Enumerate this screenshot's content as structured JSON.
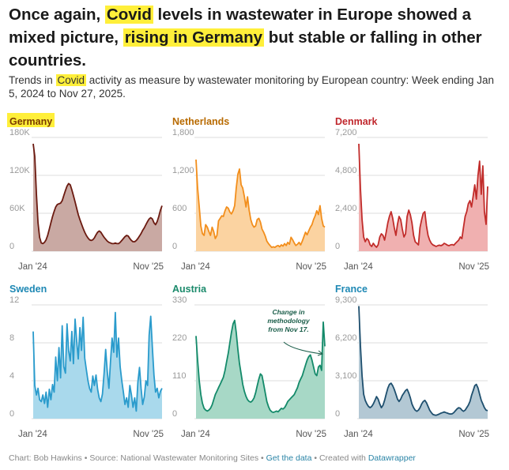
{
  "title": {
    "pre": "Once again, ",
    "hl1": "Covid",
    "mid": " levels in wastewater in Europe showed a mixed picture, ",
    "hl2": "rising in Germany",
    "post": " but stable or falling in other countries."
  },
  "subtitle": {
    "pre": "Trends in ",
    "hl": "Covid",
    "post": " activity as measure by wastewater monitoring by European country: Week ending Jan 5, 2024 to Nov 27, 2025."
  },
  "footer": {
    "chart_by": "Chart: Bob Hawkins",
    "source": "Source: National Wastewater Monitoring Sites",
    "get_data": "Get the data",
    "created": "Created with",
    "tool": "Datawrapper",
    "sep": " • "
  },
  "chart_data": [
    {
      "type": "area",
      "title": "Germany",
      "title_color": "#7a3b00",
      "highlight": true,
      "line_color": "#6b1a10",
      "fill_color": "#c9a9a3",
      "ylim": [
        0,
        180
      ],
      "yticks": [
        0,
        60,
        120,
        180
      ],
      "ytick_labels": [
        "0",
        "60K",
        "120K",
        "180K"
      ],
      "xtick_labels": [
        "Jan '24",
        "Nov '25"
      ],
      "values": [
        170,
        150,
        90,
        45,
        22,
        13,
        12,
        14,
        18,
        25,
        35,
        45,
        55,
        63,
        70,
        74,
        75,
        76,
        80,
        88,
        96,
        103,
        107,
        105,
        97,
        88,
        78,
        68,
        58,
        50,
        43,
        36,
        30,
        25,
        21,
        18,
        17,
        18,
        21,
        26,
        30,
        32,
        30,
        26,
        22,
        19,
        16,
        14,
        13,
        12,
        12,
        13,
        12,
        12,
        14,
        17,
        20,
        23,
        25,
        24,
        20,
        17,
        15,
        15,
        17,
        20,
        24,
        28,
        33,
        37,
        42,
        47,
        51,
        53,
        51,
        45,
        42,
        47,
        55,
        65,
        72
      ]
    },
    {
      "type": "area",
      "title": "Netherlands",
      "title_color": "#b86a00",
      "highlight": false,
      "line_color": "#f28e1c",
      "fill_color": "#fbd3a1",
      "ylim": [
        0,
        1800
      ],
      "yticks": [
        0,
        600,
        1200,
        1800
      ],
      "ytick_labels": [
        "0",
        "600",
        "1,200",
        "1,800"
      ],
      "xtick_labels": [
        "Jan '24",
        "Nov '25"
      ],
      "values": [
        1450,
        1000,
        700,
        400,
        280,
        250,
        420,
        380,
        310,
        250,
        380,
        310,
        200,
        250,
        480,
        520,
        560,
        550,
        640,
        700,
        680,
        620,
        590,
        640,
        720,
        1000,
        1220,
        1300,
        1050,
        1000,
        870,
        700,
        860,
        650,
        500,
        420,
        380,
        400,
        500,
        520,
        460,
        350,
        300,
        240,
        160,
        120,
        90,
        60,
        70,
        60,
        80,
        90,
        70,
        100,
        80,
        120,
        90,
        140,
        110,
        220,
        180,
        130,
        90,
        110,
        140,
        100,
        160,
        230,
        300,
        260,
        320,
        380,
        420,
        500,
        560,
        640,
        580,
        720,
        520,
        400,
        380
      ]
    },
    {
      "type": "area",
      "title": "Denmark",
      "title_color": "#c0272d",
      "highlight": false,
      "line_color": "#c12c2a",
      "fill_color": "#f0b0b0",
      "ylim": [
        0,
        7200
      ],
      "yticks": [
        0,
        2400,
        4800,
        7200
      ],
      "ytick_labels": [
        "0",
        "2,400",
        "4,800",
        "7,200"
      ],
      "xtick_labels": [
        "Jan '24",
        "Nov '25"
      ],
      "values": [
        6800,
        4000,
        2000,
        900,
        600,
        800,
        700,
        400,
        300,
        500,
        350,
        250,
        400,
        900,
        1100,
        1000,
        700,
        1200,
        1800,
        2200,
        2500,
        2100,
        1500,
        1000,
        1700,
        2200,
        2000,
        1400,
        900,
        1100,
        2200,
        2600,
        2300,
        1800,
        1000,
        600,
        500,
        400,
        1500,
        2000,
        2400,
        2500,
        1600,
        1000,
        700,
        500,
        400,
        350,
        300,
        350,
        380,
        350,
        400,
        500,
        450,
        380,
        350,
        400,
        420,
        380,
        500,
        600,
        700,
        900,
        800,
        1500,
        2200,
        2500,
        3000,
        3200,
        2800,
        3500,
        4200,
        3300,
        4800,
        5700,
        3600,
        5400,
        2500,
        1700,
        4100
      ]
    },
    {
      "type": "area",
      "title": "Sweden",
      "title_color": "#1e88b4",
      "highlight": false,
      "line_color": "#2a9bcc",
      "fill_color": "#a9d9ec",
      "ylim": [
        0,
        12
      ],
      "yticks": [
        0,
        4,
        8,
        12
      ],
      "ytick_labels": [
        "0",
        "4",
        "8",
        "12"
      ],
      "xtick_labels": [
        "Jan '24",
        "Nov '25"
      ],
      "values": [
        9.2,
        3.5,
        2.5,
        3.2,
        2,
        1.8,
        2.5,
        1.6,
        2.8,
        1.2,
        3.1,
        2,
        3.6,
        2.8,
        6.5,
        4,
        7.5,
        4.3,
        9.8,
        5.5,
        4.8,
        10,
        7.2,
        6.1,
        9.2,
        5.8,
        10.5,
        8.2,
        6.3,
        9.6,
        7.2,
        10.7,
        6.4,
        5.2,
        4,
        3.2,
        2.8,
        4.5,
        3.5,
        4.6,
        3.1,
        2.2,
        1.8,
        2.6,
        4.8,
        7.3,
        5,
        3.2,
        6,
        8.5,
        7,
        11.2,
        6.5,
        8.5,
        5.5,
        4,
        2.8,
        1.5,
        2.2,
        1.2,
        3.5,
        2.5,
        1.2,
        2.2,
        0.8,
        3.8,
        5.4,
        3.2,
        1.5,
        2.3,
        4,
        3.5,
        8.8,
        10.8,
        7.5,
        4.6,
        2.8,
        3.2,
        2.2,
        2.9,
        3.2
      ]
    },
    {
      "type": "area",
      "title": "Austria",
      "title_color": "#1b8a6b",
      "highlight": false,
      "line_color": "#148a6a",
      "fill_color": "#a7d8c6",
      "ylim": [
        0,
        330
      ],
      "yticks": [
        0,
        110,
        220,
        330
      ],
      "ytick_labels": [
        "0",
        "110",
        "220",
        "330"
      ],
      "xtick_labels": [
        "Jan '24",
        "Nov '25"
      ],
      "values": [
        240,
        170,
        110,
        70,
        45,
        30,
        25,
        22,
        25,
        30,
        40,
        55,
        70,
        80,
        90,
        100,
        110,
        120,
        140,
        165,
        190,
        220,
        250,
        275,
        285,
        250,
        200,
        160,
        130,
        100,
        80,
        65,
        55,
        50,
        48,
        52,
        60,
        75,
        95,
        115,
        130,
        125,
        100,
        75,
        50,
        35,
        25,
        20,
        18,
        20,
        22,
        20,
        25,
        30,
        28,
        32,
        40,
        50,
        55,
        60,
        65,
        70,
        80,
        90,
        105,
        115,
        125,
        140,
        155,
        170,
        180,
        185,
        170,
        150,
        130,
        125,
        150,
        155,
        140,
        280,
        210
      ]
    },
    {
      "type": "area",
      "title": "France",
      "title_color": "#1e88b4",
      "highlight": false,
      "line_color": "#1e4f6e",
      "fill_color": "#b3c8d4",
      "ylim": [
        0,
        9300
      ],
      "yticks": [
        0,
        3100,
        6200,
        9300
      ],
      "ytick_labels": [
        "0",
        "3,100",
        "6,200",
        "9,300"
      ],
      "xtick_labels": [
        "Jan '24",
        "Nov '25"
      ],
      "values": [
        9200,
        6000,
        3500,
        2000,
        1500,
        1200,
        1000,
        900,
        1000,
        1200,
        1500,
        1800,
        1600,
        1200,
        900,
        1100,
        1500,
        2000,
        2500,
        2800,
        2900,
        2700,
        2400,
        2000,
        1600,
        1400,
        1600,
        1900,
        2100,
        2300,
        2400,
        2100,
        1700,
        1200,
        900,
        700,
        600,
        700,
        900,
        1200,
        1400,
        1500,
        1300,
        1000,
        700,
        500,
        350,
        300,
        280,
        320,
        380,
        450,
        500,
        550,
        500,
        450,
        400,
        380,
        400,
        500,
        650,
        800,
        900,
        850,
        700,
        600,
        700,
        900,
        1100,
        1400,
        1900,
        2300,
        2700,
        2800,
        2500,
        2000,
        1500,
        1200,
        900,
        700,
        650
      ]
    }
  ],
  "annotation": {
    "lines": [
      "Change in",
      "methodology",
      "from Nov 17."
    ]
  },
  "colors": {
    "highlight": "#ffef3a",
    "grid": "#dcdcdc",
    "axis_text": "#9a9a9a",
    "tick_text": "#555555",
    "link": "#2a84a6"
  }
}
